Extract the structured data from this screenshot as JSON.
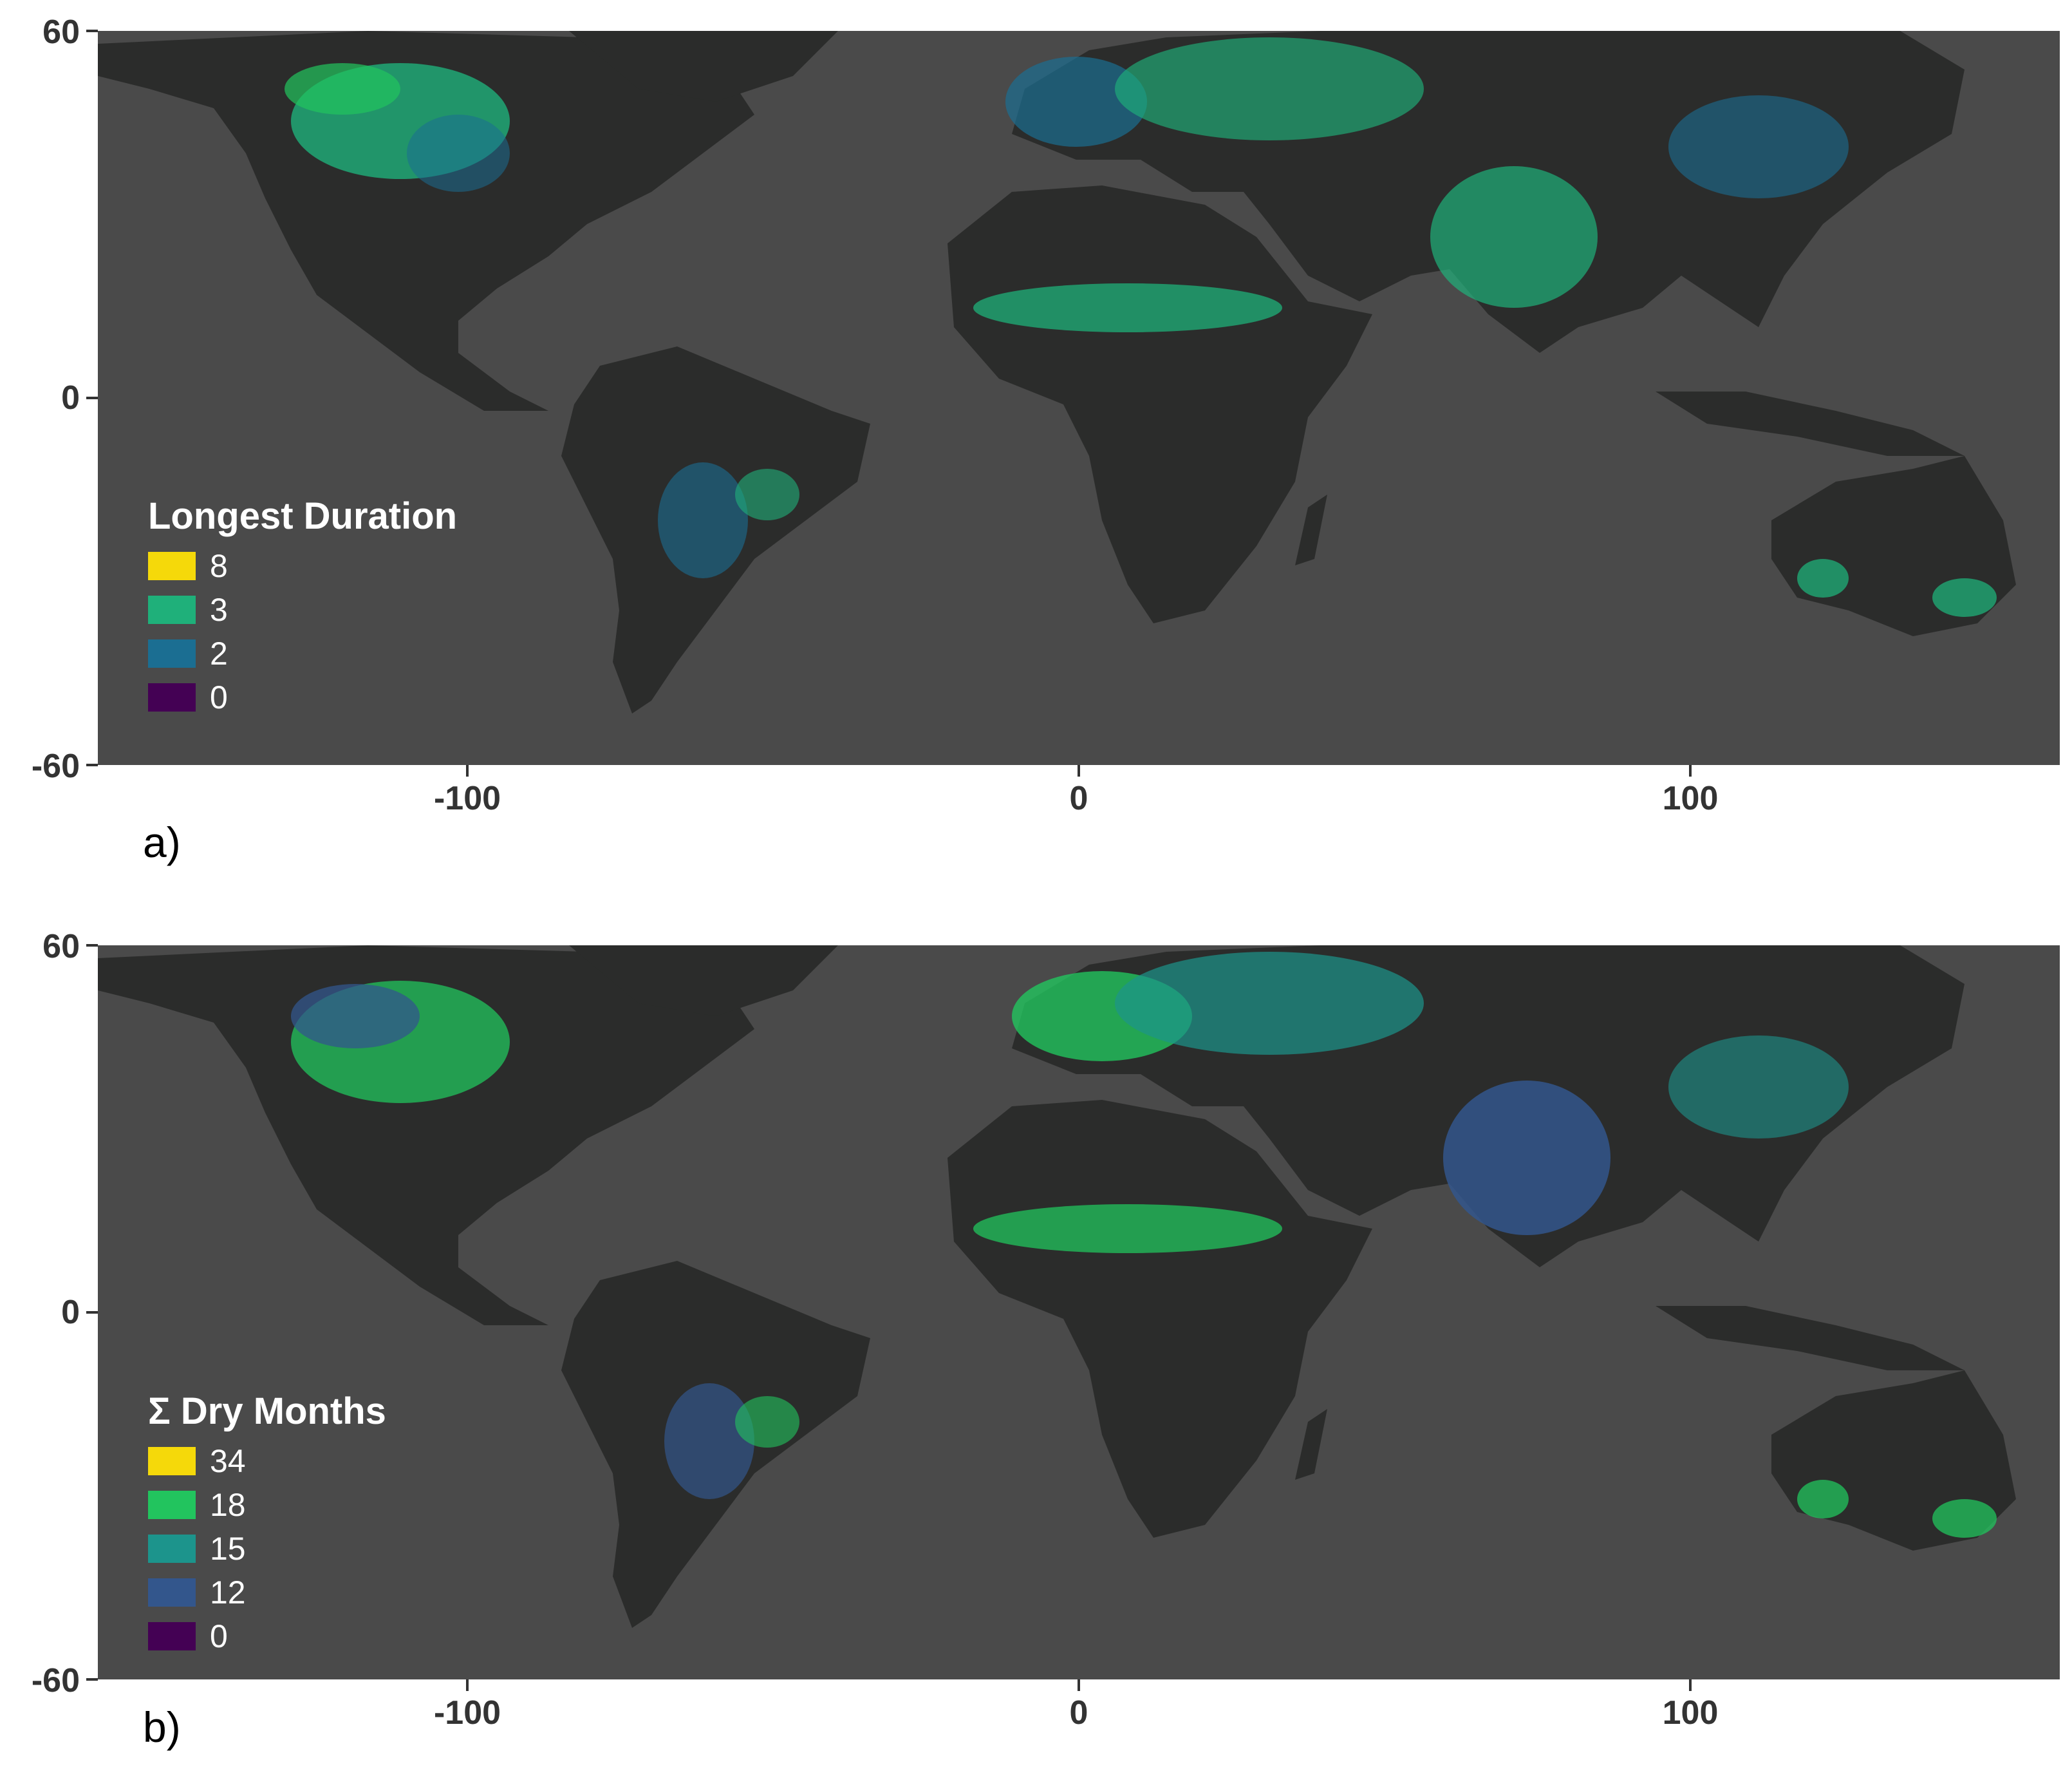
{
  "panels": [
    {
      "label": "a)",
      "legend": {
        "title": "Longest Duration",
        "items": [
          {
            "label": "8",
            "color": "#f5d90a"
          },
          {
            "label": "3",
            "color": "#1fb07a"
          },
          {
            "label": "2",
            "color": "#1b6e92"
          },
          {
            "label": "0",
            "color": "#440154"
          }
        ]
      }
    },
    {
      "label": "b)",
      "legend": {
        "title": "Σ Dry Months",
        "items": [
          {
            "label": "34",
            "color": "#f5d90a"
          },
          {
            "label": "18",
            "color": "#22c45e"
          },
          {
            "label": "15",
            "color": "#1c948c"
          },
          {
            "label": "12",
            "color": "#33568c"
          },
          {
            "label": "0",
            "color": "#440154"
          }
        ]
      }
    }
  ],
  "axes": {
    "y_ticks": [
      "60",
      "0",
      "-60"
    ],
    "x_ticks": [
      "-100",
      "0",
      "100"
    ]
  },
  "colors": {
    "ocean": "#4a4a4a",
    "land": "#2b2c2b"
  }
}
